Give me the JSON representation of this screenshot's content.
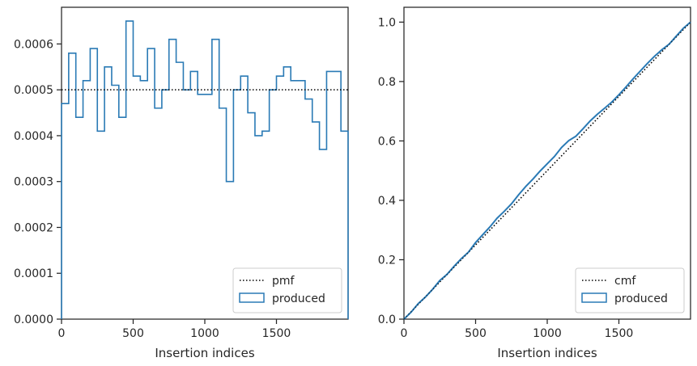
{
  "chart_data": [
    {
      "type": "histogram-step",
      "xlabel": "Insertion indices",
      "ylabel": "",
      "xlim": [
        0,
        2000
      ],
      "ylim": [
        0,
        0.00068
      ],
      "xticks": [
        0,
        500,
        1000,
        1500
      ],
      "xtick_labels": [
        "0",
        "500",
        "1000",
        "1500"
      ],
      "yticks": [
        0,
        0.0001,
        0.0002,
        0.0003,
        0.0004,
        0.0005,
        0.0006
      ],
      "ytick_labels": [
        "0.0000",
        "0.0001",
        "0.0002",
        "0.0003",
        "0.0004",
        "0.0005",
        "0.0006"
      ],
      "legend": {
        "placement": "lower-right",
        "entries": [
          "pmf",
          "produced"
        ]
      },
      "reference_line": {
        "name": "pmf",
        "y": 0.0005,
        "style": "dotted"
      },
      "series": [
        {
          "name": "produced",
          "bin_edges": [
            0,
            50,
            100,
            150,
            200,
            250,
            300,
            350,
            400,
            450,
            500,
            550,
            600,
            650,
            700,
            750,
            800,
            850,
            900,
            950,
            1000,
            1050,
            1100,
            1150,
            1200,
            1250,
            1300,
            1350,
            1400,
            1450,
            1500,
            1550,
            1600,
            1650,
            1700,
            1750,
            1800,
            1850,
            1900,
            1950,
            2000
          ],
          "values": [
            0.00047,
            0.00058,
            0.00044,
            0.00052,
            0.00059,
            0.00041,
            0.00055,
            0.00051,
            0.00044,
            0.00065,
            0.00053,
            0.00052,
            0.00059,
            0.00046,
            0.0005,
            0.00061,
            0.00056,
            0.0005,
            0.00054,
            0.00049,
            0.00049,
            0.00061,
            0.00046,
            0.0003,
            0.0005,
            0.00053,
            0.00045,
            0.0004,
            0.00041,
            0.0005,
            0.00053,
            0.00055,
            0.00052,
            0.00052,
            0.00048,
            0.00043,
            0.00037,
            0.00054,
            0.00054,
            0.00041
          ]
        }
      ],
      "colors": {
        "produced": "#2a7ab5",
        "pmf": "#000000"
      }
    },
    {
      "type": "line",
      "xlabel": "Insertion indices",
      "ylabel": "",
      "xlim": [
        0,
        2000
      ],
      "ylim": [
        0,
        1.05
      ],
      "xticks": [
        0,
        500,
        1000,
        1500
      ],
      "xtick_labels": [
        "0",
        "500",
        "1000",
        "1500"
      ],
      "yticks": [
        0,
        0.2,
        0.4,
        0.6,
        0.8,
        1.0
      ],
      "ytick_labels": [
        "0.0",
        "0.2",
        "0.4",
        "0.6",
        "0.8",
        "1.0"
      ],
      "legend": {
        "placement": "lower-right",
        "entries": [
          "cmf",
          "produced"
        ]
      },
      "series": [
        {
          "name": "cmf",
          "style": "dotted",
          "x": [
            0,
            2000
          ],
          "y": [
            0,
            1.0
          ]
        },
        {
          "name": "produced",
          "x": [
            0,
            50,
            100,
            150,
            200,
            250,
            300,
            350,
            400,
            450,
            500,
            550,
            600,
            650,
            700,
            750,
            800,
            850,
            900,
            950,
            1000,
            1050,
            1100,
            1150,
            1200,
            1250,
            1300,
            1350,
            1400,
            1450,
            1500,
            1550,
            1600,
            1650,
            1700,
            1750,
            1800,
            1850,
            1900,
            1950,
            2000
          ],
          "y": [
            0,
            0.0235,
            0.0525,
            0.0745,
            0.1005,
            0.13,
            0.1505,
            0.178,
            0.2035,
            0.2255,
            0.258,
            0.2845,
            0.3105,
            0.34,
            0.363,
            0.388,
            0.4185,
            0.4465,
            0.4715,
            0.4985,
            0.523,
            0.5475,
            0.578,
            0.601,
            0.616,
            0.641,
            0.6675,
            0.69,
            0.71,
            0.7305,
            0.7555,
            0.782,
            0.8095,
            0.8355,
            0.8615,
            0.8855,
            0.907,
            0.9255,
            0.9525,
            0.9795,
            1.0
          ]
        }
      ],
      "colors": {
        "produced": "#2a7ab5",
        "cmf": "#000000"
      }
    }
  ]
}
